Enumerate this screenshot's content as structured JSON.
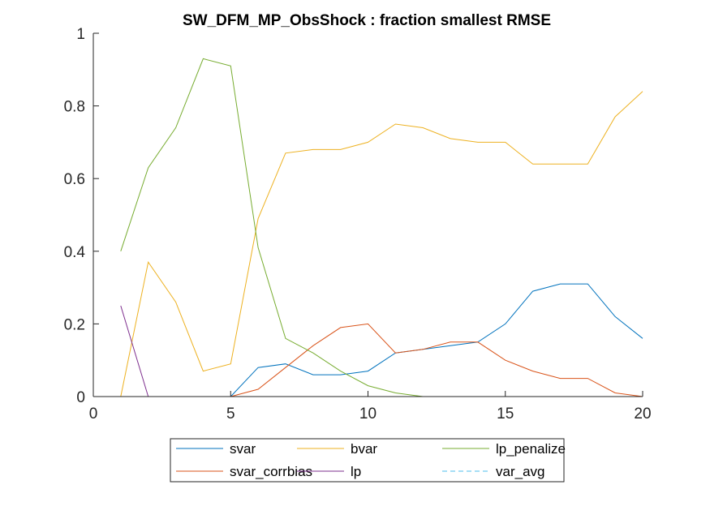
{
  "chart_data": {
    "type": "line",
    "title": "SW_DFM_MP_ObsShock : fraction smallest RMSE",
    "xlabel": "",
    "ylabel": "",
    "xlim": [
      0,
      20
    ],
    "ylim": [
      0,
      1
    ],
    "xticks": [
      0,
      5,
      10,
      15,
      20
    ],
    "yticks": [
      0,
      0.2,
      0.4,
      0.6,
      0.8,
      1
    ],
    "xtick_labels": [
      "0",
      "5",
      "10",
      "15",
      "20"
    ],
    "ytick_labels": [
      "0",
      "0.2",
      "0.4",
      "0.6",
      "0.8",
      "1"
    ],
    "grid": false,
    "legend_position": "bottom-outside",
    "x": [
      1,
      2,
      3,
      4,
      5,
      6,
      7,
      8,
      9,
      10,
      11,
      12,
      13,
      14,
      15,
      16,
      17,
      18,
      19,
      20
    ],
    "series": [
      {
        "name": "svar",
        "color": "#0072BD",
        "dash": "solid",
        "values": [
          0,
          0,
          0,
          0,
          0,
          0.08,
          0.09,
          0.06,
          0.06,
          0.07,
          0.12,
          0.13,
          0.14,
          0.15,
          0.2,
          0.29,
          0.31,
          0.31,
          0.22,
          0.16
        ]
      },
      {
        "name": "svar_corrbias",
        "color": "#D95319",
        "dash": "solid",
        "values": [
          0,
          0,
          0,
          0,
          0,
          0.02,
          0.08,
          0.14,
          0.19,
          0.2,
          0.12,
          0.13,
          0.15,
          0.15,
          0.1,
          0.07,
          0.05,
          0.05,
          0.01,
          0
        ]
      },
      {
        "name": "bvar",
        "color": "#EDB120",
        "dash": "solid",
        "values": [
          0,
          0.37,
          0.26,
          0.07,
          0.09,
          0.49,
          0.67,
          0.68,
          0.68,
          0.7,
          0.75,
          0.74,
          0.71,
          0.7,
          0.7,
          0.64,
          0.64,
          0.64,
          0.77,
          0.84
        ]
      },
      {
        "name": "lp",
        "color": "#7E2F8E",
        "dash": "solid",
        "values": [
          0.25,
          0,
          0,
          0,
          0,
          0,
          0,
          0,
          0,
          0,
          0,
          0,
          0,
          0,
          0,
          0,
          0,
          0,
          0,
          0
        ]
      },
      {
        "name": "lp_penalize",
        "color": "#77AC30",
        "dash": "solid",
        "values": [
          0.4,
          0.63,
          0.74,
          0.93,
          0.91,
          0.41,
          0.16,
          0.12,
          0.07,
          0.03,
          0.01,
          0,
          0,
          0,
          0,
          0,
          0,
          0,
          0,
          0
        ]
      },
      {
        "name": "var_avg",
        "color": "#4DBEEE",
        "dash": "dashed",
        "values": [
          0,
          0,
          0,
          0,
          0,
          0,
          0,
          0,
          0,
          0,
          0,
          0,
          0,
          0,
          0,
          0,
          0,
          0,
          0,
          0
        ]
      }
    ],
    "legend_order": [
      "svar",
      "bvar",
      "lp_penalize",
      "svar_corrbias",
      "lp",
      "var_avg"
    ]
  }
}
